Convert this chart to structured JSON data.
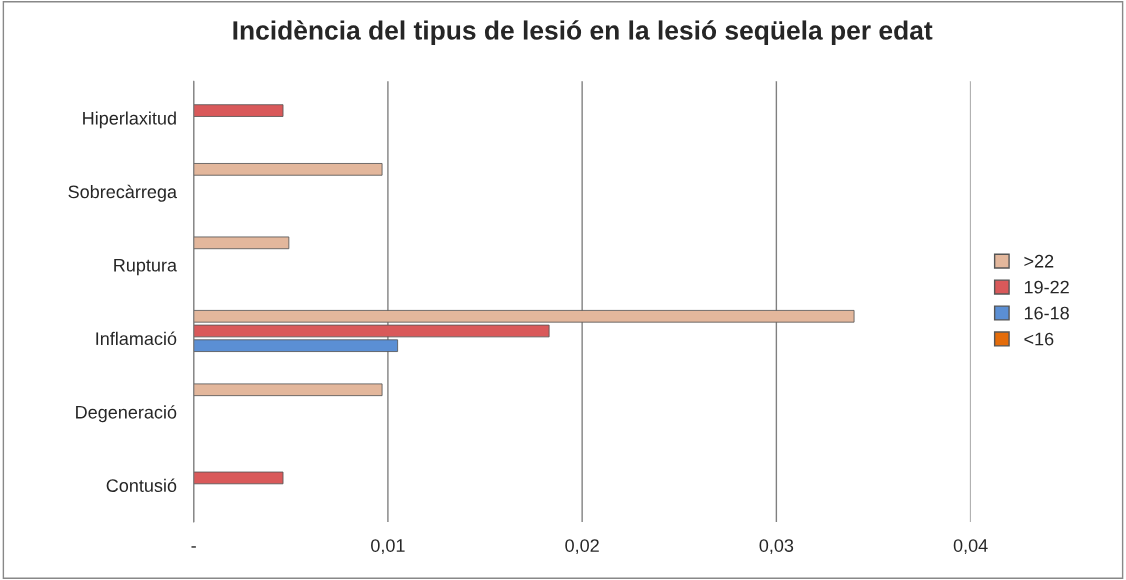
{
  "chart_data": {
    "type": "bar",
    "orientation": "horizontal",
    "title": "Incidència del tipus de lesió en la lesió seqüela per edat",
    "categories": [
      "Hiperlaxitud",
      "Sobrecàrrega",
      "Ruptura",
      "Inflamació",
      "Degeneració",
      "Contusió"
    ],
    "series": [
      {
        "name": "<16",
        "color": "#e46c0a",
        "values": [
          null,
          null,
          null,
          null,
          null,
          null
        ]
      },
      {
        "name": "16-18",
        "color": "#5b8fd4",
        "values": [
          null,
          null,
          null,
          0.0105,
          null,
          null
        ]
      },
      {
        "name": "19-22",
        "color": "#d9595a",
        "values": [
          0.0046,
          null,
          null,
          0.0183,
          null,
          0.0046
        ]
      },
      {
        "name": ">22",
        "color": "#e3b79c",
        "values": [
          null,
          0.0097,
          0.0049,
          0.034,
          0.0097,
          null
        ]
      }
    ],
    "xlim": [
      0,
      0.04
    ],
    "xticks": [
      {
        "value": 0,
        "label": "-"
      },
      {
        "value": 0.01,
        "label": "0,01"
      },
      {
        "value": 0.02,
        "label": "0,02"
      },
      {
        "value": 0.03,
        "label": "0,03"
      },
      {
        "value": 0.04,
        "label": "0,04"
      }
    ],
    "grid": "x",
    "legend": "right"
  }
}
